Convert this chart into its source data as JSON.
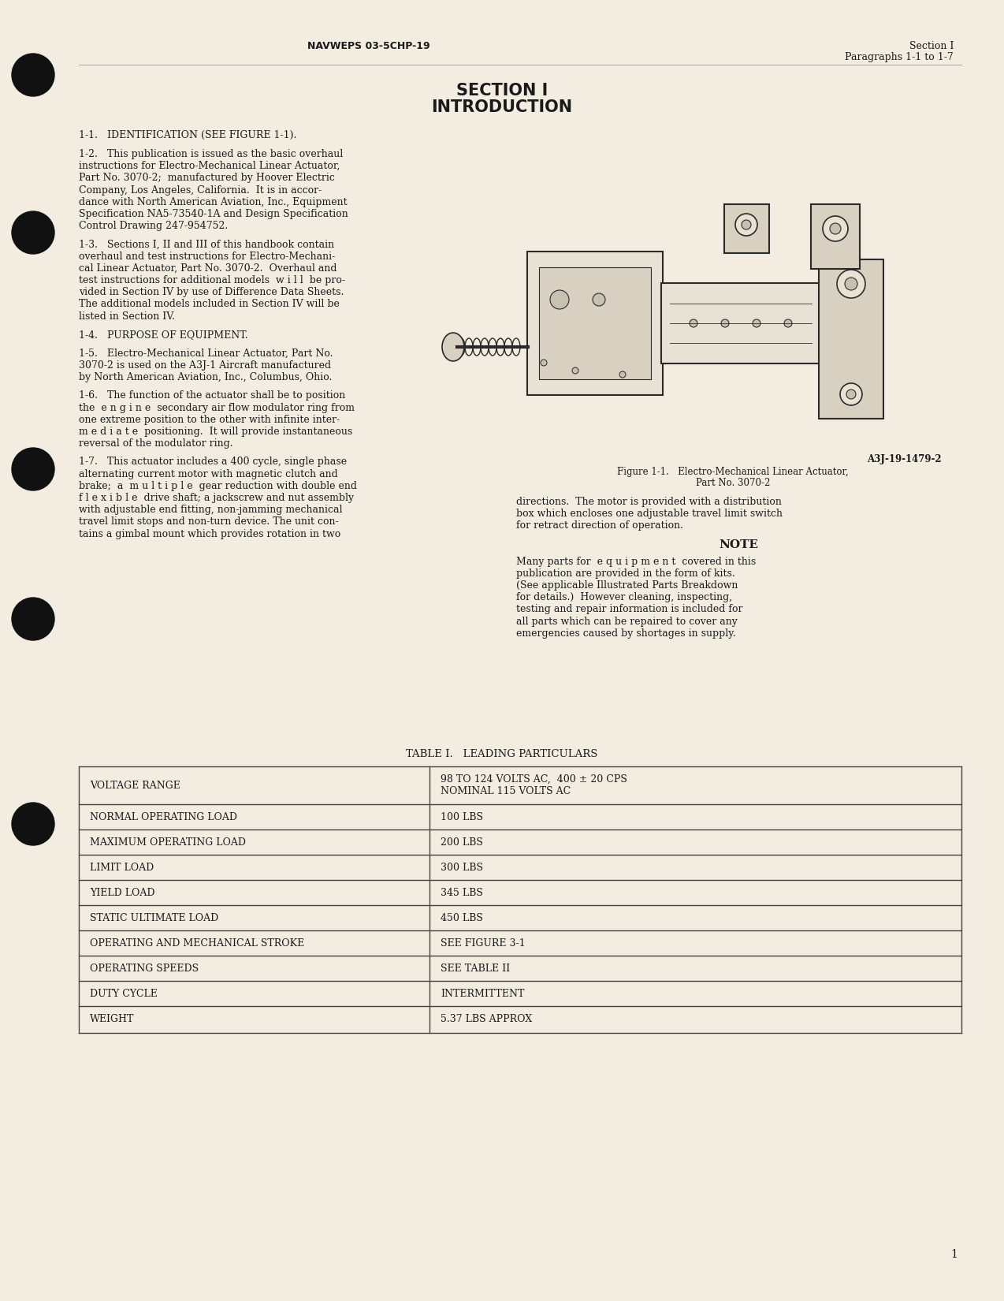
{
  "page_bg": "#f2ede0",
  "header_left": "NAVWEPS 03-5CHP-19",
  "header_right_line1": "Section I",
  "header_right_line2": "Paragraphs 1-1 to 1-7",
  "section_title_line1": "SECTION I",
  "section_title_line2": "INTRODUCTION",
  "para_1_1_title": "1-1.   IDENTIFICATION (SEE FIGURE 1-1).",
  "para_1_2_lines": [
    "1-2.   This publication is issued as the basic overhaul",
    "instructions for Electro-Mechanical Linear Actuator,",
    "Part No. 3070-2;  manufactured by Hoover Electric",
    "Company, Los Angeles, California.  It is in accor-",
    "dance with North American Aviation, Inc., Equipment",
    "Specification NA5-73540-1A and Design Specification",
    "Control Drawing 247-954752."
  ],
  "para_1_3_lines": [
    "1-3.   Sections I, II and III of this handbook contain",
    "overhaul and test instructions for Electro-Mechani-",
    "cal Linear Actuator, Part No. 3070-2.  Overhaul and",
    "test instructions for additional models  w i l l  be pro-",
    "vided in Section IV by use of Difference Data Sheets.",
    "The additional models included in Section IV will be",
    "listed in Section IV."
  ],
  "para_1_4_title": "1-4.   PURPOSE OF EQUIPMENT.",
  "para_1_5_lines": [
    "1-5.   Electro-Mechanical Linear Actuator, Part No.",
    "3070-2 is used on the A3J-1 Aircraft manufactured",
    "by North American Aviation, Inc., Columbus, Ohio."
  ],
  "para_1_6_lines": [
    "1-6.   The function of the actuator shall be to position",
    "the  e n g i n e  secondary air flow modulator ring from",
    "one extreme position to the other with infinite inter-",
    "m e d i a t e  positioning.  It will provide instantaneous",
    "reversal of the modulator ring."
  ],
  "para_1_7_lines": [
    "1-7.   This actuator includes a 400 cycle, single phase",
    "alternating current motor with magnetic clutch and",
    "brake;  a  m u l t i p l e  gear reduction with double end",
    "f l e x i b l e  drive shaft; a jackscrew and nut assembly",
    "with adjustable end fitting, non-jamming mechanical",
    "travel limit stops and non-turn device. The unit con-",
    "tains a gimbal mount which provides rotation in two"
  ],
  "right_col_lines": [
    "directions.  The motor is provided with a distribution",
    "box which encloses one adjustable travel limit switch",
    "for retract direction of operation."
  ],
  "note_title": "NOTE",
  "note_lines": [
    "Many parts for  e q u i p m e n t  covered in this",
    "publication are provided in the form of kits.",
    "(See applicable Illustrated Parts Breakdown",
    "for details.)  However cleaning, inspecting,",
    "testing and repair information is included for",
    "all parts which can be repaired to cover any",
    "emergencies caused by shortages in supply."
  ],
  "fig_label": "A3J-19-1479-2",
  "fig_caption_1": "Figure 1-1.   Electro-Mechanical Linear Actuator,",
  "fig_caption_2": "Part No. 3070-2",
  "table_title": "TABLE I.   LEADING PARTICULARS",
  "table_rows": [
    [
      "VOLTAGE RANGE",
      "98 TO 124 VOLTS AC,  400 ± 20 CPS\nNOMINAL 115 VOLTS AC"
    ],
    [
      "NORMAL OPERATING LOAD",
      "100 LBS"
    ],
    [
      "MAXIMUM OPERATING LOAD",
      "200 LBS"
    ],
    [
      "LIMIT LOAD",
      "300 LBS"
    ],
    [
      "YIELD LOAD",
      "345 LBS"
    ],
    [
      "STATIC ULTIMATE LOAD",
      "450 LBS"
    ],
    [
      "OPERATING AND MECHANICAL STROKE",
      "SEE FIGURE 3-1"
    ],
    [
      "OPERATING SPEEDS",
      "SEE TABLE II"
    ],
    [
      "DUTY CYCLE",
      "INTERMITTENT"
    ],
    [
      "WEIGHT",
      "5.37 LBS APPROX"
    ]
  ],
  "page_number": "1",
  "text_color": "#1a1a1a",
  "table_border_color": "#444444"
}
